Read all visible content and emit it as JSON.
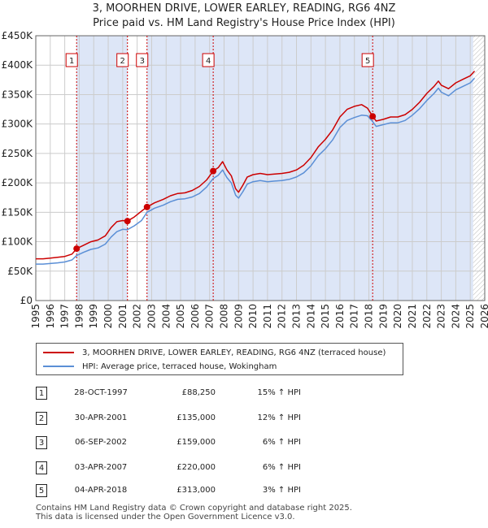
{
  "title": {
    "line1": "3, MOORHEN DRIVE, LOWER EARLEY, READING, RG6 4NZ",
    "line2": "Price paid vs. HM Land Registry's House Price Index (HPI)"
  },
  "colors": {
    "price_line": "#cc0000",
    "hpi_line": "#5b8fd6",
    "shade": "#dde6f7",
    "grid": "#cccccc",
    "marker_line": "#cc0000"
  },
  "legend": {
    "price_label": "3, MOORHEN DRIVE, LOWER EARLEY, READING, RG6 4NZ (terraced house)",
    "hpi_label": "HPI: Average price, terraced house, Wokingham"
  },
  "chart_data": {
    "type": "line",
    "xlim": [
      1995,
      2026
    ],
    "ylim": [
      0,
      450000
    ],
    "y_ticks": [
      0,
      50000,
      100000,
      150000,
      200000,
      250000,
      300000,
      350000,
      400000,
      450000
    ],
    "y_tick_labels": [
      "£0",
      "£50K",
      "£100K",
      "£150K",
      "£200K",
      "£250K",
      "£300K",
      "£350K",
      "£400K",
      "£450K"
    ],
    "x_ticks": [
      1995,
      1996,
      1997,
      1998,
      1999,
      2000,
      2001,
      2002,
      2003,
      2004,
      2005,
      2006,
      2007,
      2008,
      2009,
      2010,
      2011,
      2012,
      2013,
      2014,
      2015,
      2016,
      2017,
      2018,
      2019,
      2020,
      2021,
      2022,
      2023,
      2024,
      2025,
      2026
    ],
    "x_tick_labels": [
      "1995",
      "1996",
      "1997",
      "1998",
      "1999",
      "2000",
      "2001",
      "2002",
      "2003",
      "2004",
      "2005",
      "2006",
      "2007",
      "2008",
      "2009",
      "2010",
      "2011",
      "2012",
      "2013",
      "2014",
      "2015",
      "2016",
      "2017",
      "2018",
      "2019",
      "2020",
      "2021",
      "2022",
      "2023",
      "2024",
      "2025",
      "2026"
    ],
    "hatch_from": 2025.2,
    "series": [
      {
        "name": "3, MOORHEN DRIVE, LOWER EARLEY, READING, RG6 4NZ (terraced house)",
        "x": [
          1995.0,
          1995.5,
          1996.0,
          1996.5,
          1997.0,
          1997.5,
          1997.82,
          1998.3,
          1998.8,
          1999.3,
          1999.8,
          2000.2,
          2000.6,
          2001.0,
          2001.33,
          2001.8,
          2002.3,
          2002.68,
          2003.2,
          2003.8,
          2004.3,
          2004.8,
          2005.3,
          2005.8,
          2006.3,
          2006.8,
          2007.25,
          2007.6,
          2007.9,
          2008.2,
          2008.5,
          2008.8,
          2009.0,
          2009.3,
          2009.6,
          2010.0,
          2010.5,
          2011.0,
          2011.5,
          2012.0,
          2012.5,
          2013.0,
          2013.5,
          2014.0,
          2014.5,
          2015.0,
          2015.5,
          2016.0,
          2016.5,
          2017.0,
          2017.5,
          2017.9,
          2018.26,
          2018.5,
          2019.0,
          2019.5,
          2020.0,
          2020.5,
          2021.0,
          2021.5,
          2022.0,
          2022.5,
          2022.8,
          2023.0,
          2023.5,
          2024.0,
          2024.5,
          2025.0,
          2025.3
        ],
        "values": [
          71000,
          71000,
          72000,
          73500,
          75000,
          79000,
          88250,
          94000,
          100000,
          103000,
          110000,
          124000,
          134000,
          136000,
          135000,
          142000,
          152000,
          159000,
          166000,
          172000,
          178000,
          182000,
          183000,
          187000,
          194000,
          205000,
          220000,
          226000,
          236000,
          222000,
          212000,
          190000,
          184000,
          196000,
          210000,
          214000,
          216000,
          214000,
          215000,
          216000,
          218000,
          222000,
          230000,
          243000,
          261000,
          274000,
          290000,
          312000,
          325000,
          330000,
          333000,
          327000,
          313000,
          305000,
          308000,
          312000,
          312000,
          316000,
          325000,
          337000,
          352000,
          364000,
          373000,
          366000,
          360000,
          370000,
          376000,
          382000,
          390000
        ]
      },
      {
        "name": "HPI: Average price, terraced house, Wokingham",
        "x": [
          1995.0,
          1995.5,
          1996.0,
          1996.5,
          1997.0,
          1997.5,
          1997.82,
          1998.3,
          1998.8,
          1999.3,
          1999.8,
          2000.2,
          2000.6,
          2001.0,
          2001.33,
          2001.8,
          2002.3,
          2002.68,
          2003.2,
          2003.8,
          2004.3,
          2004.8,
          2005.3,
          2005.8,
          2006.3,
          2006.8,
          2007.25,
          2007.6,
          2007.9,
          2008.2,
          2008.5,
          2008.8,
          2009.0,
          2009.3,
          2009.6,
          2010.0,
          2010.5,
          2011.0,
          2011.5,
          2012.0,
          2012.5,
          2013.0,
          2013.5,
          2014.0,
          2014.5,
          2015.0,
          2015.5,
          2016.0,
          2016.5,
          2017.0,
          2017.5,
          2017.9,
          2018.26,
          2018.5,
          2019.0,
          2019.5,
          2020.0,
          2020.5,
          2021.0,
          2021.5,
          2022.0,
          2022.5,
          2022.8,
          2023.0,
          2023.5,
          2024.0,
          2024.5,
          2025.0,
          2025.3
        ],
        "values": [
          62000,
          62000,
          63000,
          64000,
          65500,
          69000,
          76500,
          82000,
          87000,
          89500,
          96000,
          108000,
          117000,
          121000,
          120500,
          127000,
          136000,
          150000,
          157000,
          162000,
          168000,
          172000,
          173000,
          176000,
          182000,
          193000,
          207500,
          213000,
          222000,
          209000,
          200000,
          179000,
          174000,
          185000,
          198000,
          202000,
          204000,
          202000,
          203000,
          204000,
          206000,
          210000,
          217000,
          229000,
          246000,
          258000,
          273000,
          294000,
          306000,
          311000,
          315000,
          314000,
          304000,
          296000,
          299000,
          302000,
          302000,
          306000,
          315000,
          326000,
          340000,
          352000,
          361000,
          354000,
          348000,
          358000,
          364000,
          370000,
          378000
        ]
      }
    ],
    "sales": [
      {
        "num": "1",
        "x": 1997.82,
        "value": 88250
      },
      {
        "num": "2",
        "x": 2001.33,
        "value": 135000
      },
      {
        "num": "3",
        "x": 2002.68,
        "value": 159000
      },
      {
        "num": "4",
        "x": 2007.25,
        "value": 220000
      },
      {
        "num": "5",
        "x": 2018.26,
        "value": 313000
      }
    ]
  },
  "sales_table": [
    {
      "num": "1",
      "date": "28-OCT-1997",
      "price": "£88,250",
      "hpi": "15% ↑ HPI"
    },
    {
      "num": "2",
      "date": "30-APR-2001",
      "price": "£135,000",
      "hpi": "12% ↑ HPI"
    },
    {
      "num": "3",
      "date": "06-SEP-2002",
      "price": "£159,000",
      "hpi": "6% ↑ HPI"
    },
    {
      "num": "4",
      "date": "03-APR-2007",
      "price": "£220,000",
      "hpi": "6% ↑ HPI"
    },
    {
      "num": "5",
      "date": "04-APR-2018",
      "price": "£313,000",
      "hpi": "3% ↑ HPI"
    }
  ],
  "footer": {
    "line1": "Contains HM Land Registry data © Crown copyright and database right 2025.",
    "line2": "This data is licensed under the Open Government Licence v3.0."
  }
}
